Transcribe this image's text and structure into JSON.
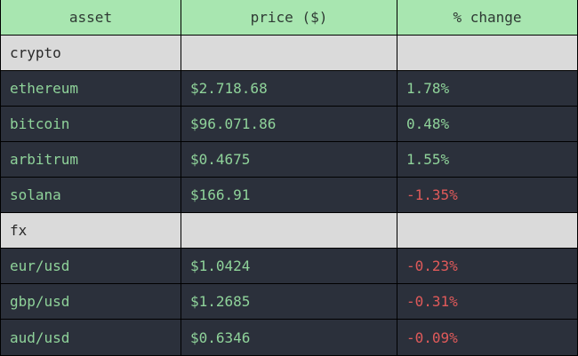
{
  "columns": [
    "asset",
    "price ($)",
    "% change"
  ],
  "groups": [
    {
      "name": "crypto",
      "rows": [
        {
          "asset": "ethereum",
          "price": "$2.718.68",
          "change": "1.78%",
          "negative": false
        },
        {
          "asset": "bitcoin",
          "price": "$96.071.86",
          "change": "0.48%",
          "negative": false
        },
        {
          "asset": "arbitrum",
          "price": "$0.4675",
          "change": "1.55%",
          "negative": false
        },
        {
          "asset": "solana",
          "price": "$166.91",
          "change": "-1.35%",
          "negative": true
        }
      ]
    },
    {
      "name": "fx",
      "rows": [
        {
          "asset": "eur/usd",
          "price": "$1.0424",
          "change": "-0.23%",
          "negative": true
        },
        {
          "asset": "gbp/usd",
          "price": "$1.2685",
          "change": "-0.31%",
          "negative": true
        },
        {
          "asset": "aud/usd",
          "price": "$0.6346",
          "change": "-0.09%",
          "negative": true
        }
      ]
    }
  ],
  "colors": {
    "header_bg": "#a8e6b0",
    "group_bg": "#dadada",
    "row_bg": "#2b303b",
    "positive": "#8fd39a",
    "negative": "#e05a5a"
  }
}
